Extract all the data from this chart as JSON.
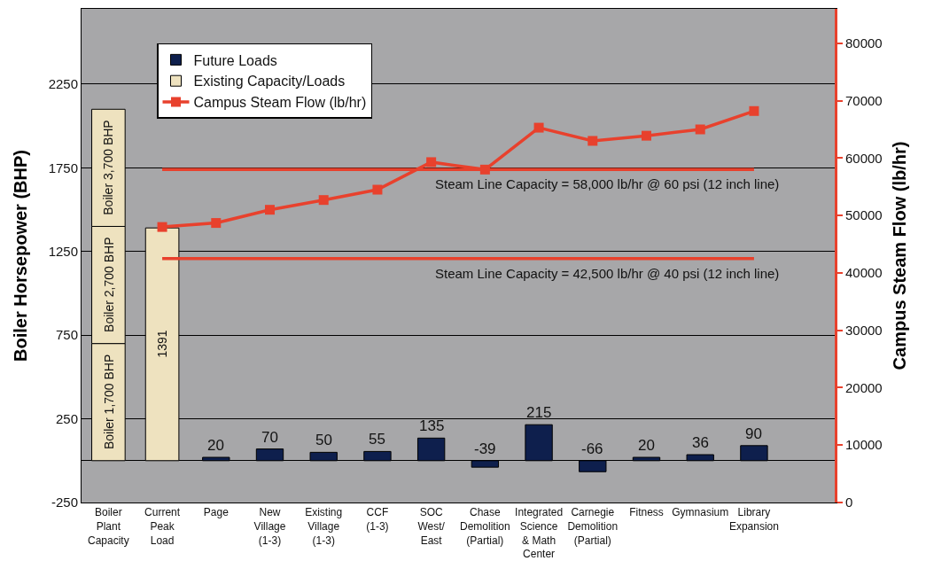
{
  "chart_data": {
    "type": "bar",
    "stacked": true,
    "ylabel": "Boiler Horsepower (BHP)",
    "y2label": "Campus Steam Flow (lb/hr)",
    "categories": [
      "Boiler Plant Capacity",
      "Current Peak Load",
      "Page",
      "New Village (1-3)",
      "Existing Village (1-3)",
      "CCF (1-3)",
      "SOC West/ East",
      "Chase Demolition (Partial)",
      "Integrated Science & Math Center",
      "Carnegie Demolition (Partial)",
      "Fitness",
      "Gymnasium",
      "Library Expansion",
      null
    ],
    "series": [
      {
        "name": "Future Loads",
        "color": "#0e1f4d",
        "values": [
          null,
          null,
          20,
          70,
          50,
          55,
          135,
          -39,
          215,
          -66,
          20,
          36,
          90,
          null
        ],
        "value_labels": [
          null,
          null,
          "20",
          "70",
          "50",
          "55",
          "135",
          "-39",
          "215",
          "-66",
          "20",
          "36",
          "90",
          null
        ]
      },
      {
        "name": "Existing Capacity/Loads",
        "color": "#eee2bf",
        "values": [
          700,
          1391,
          null,
          null,
          null,
          null,
          null,
          null,
          null,
          null,
          null,
          null,
          null,
          null
        ],
        "value_labels": [
          null,
          "1391",
          null,
          null,
          null,
          null,
          null,
          null,
          null,
          null,
          null,
          null,
          null,
          null
        ]
      },
      {
        "color": "#eee2bf",
        "values": [
          700,
          null,
          null,
          null,
          null,
          null,
          null,
          null,
          null,
          null,
          null,
          null,
          null,
          null
        ]
      },
      {
        "color": "#eee2bf",
        "values": [
          700,
          null,
          null,
          null,
          null,
          null,
          null,
          null,
          null,
          null,
          null,
          null,
          null,
          null
        ]
      },
      {
        "name": "Campus Steam Flow (lb/hr)",
        "type": "line",
        "axis": "y2",
        "marker": "square",
        "color": "#e8412d",
        "values": [
          null,
          48000,
          48700,
          51000,
          52700,
          54500,
          59300,
          58000,
          65300,
          63000,
          63900,
          65000,
          68200,
          null
        ]
      }
    ],
    "ylim": [
      -250,
      2700
    ],
    "yticks": [
      -250,
      250,
      750,
      1250,
      1750,
      2250
    ],
    "y2lim": [
      0,
      86000
    ],
    "y2ticks": [
      0,
      10000,
      20000,
      30000,
      40000,
      50000,
      60000,
      70000,
      80000
    ],
    "grid": "y",
    "legend": "top left",
    "ref_lines": [
      {
        "axis": "y2",
        "value": 58000,
        "label": "Steam Line Capacity = 58,000 lb/hr @ 60 psi (12 inch line)",
        "color": "#e8412d"
      },
      {
        "axis": "y2",
        "value": 42500,
        "label": "Steam Line Capacity = 42,500 lb/hr @ 40 psi (12 inch line)",
        "color": "#e8412d"
      }
    ],
    "annotations": [
      "Boiler 1,700 BHP",
      "Boiler 2,700 BHP",
      "Boiler 3,700 BHP"
    ]
  }
}
